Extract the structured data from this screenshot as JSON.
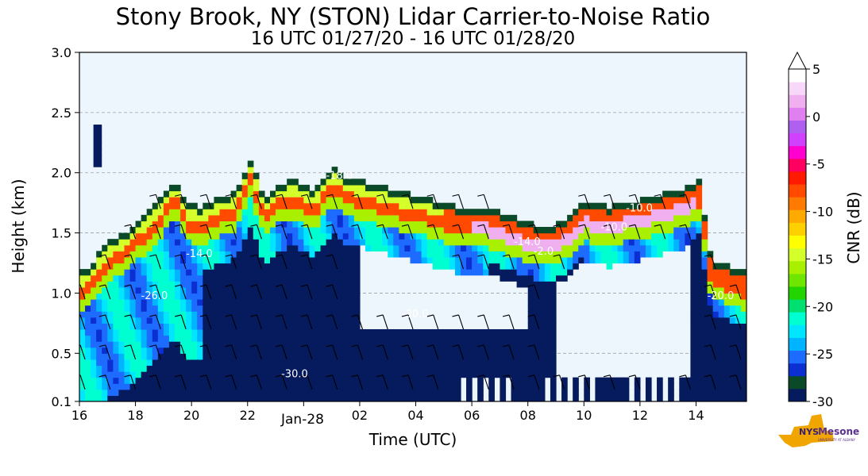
{
  "chart_data": {
    "type": "heatmap",
    "title": "Stony Brook, NY (STON) Lidar Carrier-to-Noise Ratio",
    "subtitle": "16 UTC 01/27/20 - 16 UTC 01/28/20",
    "xlabel": "Time (UTC)",
    "ylabel": "Height (km)",
    "x_ticks": [
      "16",
      "18",
      "20",
      "22",
      "02",
      "04",
      "06",
      "08",
      "10",
      "12",
      "14"
    ],
    "x_tick_hours": [
      16,
      18,
      20,
      22,
      26,
      28,
      30,
      32,
      34,
      36,
      38
    ],
    "x_date_label": "Jan-28",
    "x_date_hour": 24,
    "xlim_hours": [
      16,
      39.8
    ],
    "y_ticks": [
      "0.1",
      "0.5",
      "1.0",
      "1.5",
      "2.0",
      "2.5",
      "3.0"
    ],
    "y_tick_values": [
      0.1,
      0.5,
      1.0,
      1.5,
      2.0,
      2.5,
      3.0
    ],
    "ylim": [
      0.1,
      3.0
    ],
    "grid": "horizontal dashed",
    "background_color": "#eef6fd",
    "colorbar": {
      "label": "CNR (dB)",
      "ticks": [
        "5",
        "0",
        "-5",
        "-10",
        "-15",
        "-20",
        "-25",
        "-30"
      ],
      "tick_values": [
        5,
        0,
        -5,
        -10,
        -15,
        -20,
        -25,
        -30
      ],
      "range": [
        -30,
        5
      ],
      "colors": [
        "#061a5e",
        "#0a4a28",
        "#0b2fd0",
        "#1e6cff",
        "#00b4ff",
        "#00e6ff",
        "#00ffd0",
        "#00e070",
        "#22d400",
        "#6ee600",
        "#a8f000",
        "#d4ff2a",
        "#ffff00",
        "#ffd000",
        "#ffaa00",
        "#ff7a00",
        "#ff4a00",
        "#ff1a00",
        "#ff0060",
        "#ff00d0",
        "#d040ff",
        "#b060f0",
        "#e080f0",
        "#f0b0f0",
        "#f8d8f8",
        "#ffffff"
      ]
    },
    "contour_labels": [
      "-26.0",
      "-30.0",
      "-18.0",
      "-10.0",
      "-14.0",
      "-2.0",
      "-20.0"
    ]
  },
  "logo": {
    "text": "NYS",
    "name": "Mesonet",
    "sub": "UNIVERSITY AT ALBANY"
  }
}
